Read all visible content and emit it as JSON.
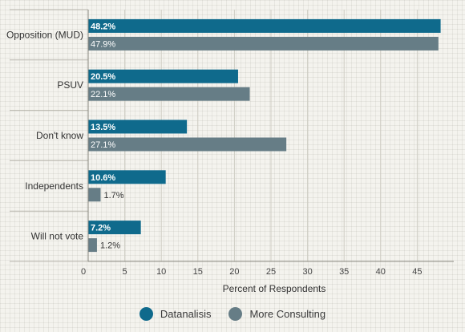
{
  "chart_data": {
    "type": "bar",
    "orientation": "horizontal",
    "categories": [
      "Opposition (MUD)",
      "PSUV",
      "Don't know",
      "Independents",
      "Will not vote"
    ],
    "series": [
      {
        "name": "Datanalisis",
        "color": "#0f6a8c",
        "values": [
          48.2,
          20.5,
          13.5,
          10.6,
          7.2
        ],
        "labels": [
          "48.2%",
          "20.5%",
          "13.5%",
          "10.6%",
          "7.2%"
        ]
      },
      {
        "name": "More Consulting",
        "color": "#667d86",
        "values": [
          47.9,
          22.1,
          27.1,
          1.7,
          1.2
        ],
        "labels": [
          "47.9%",
          "22.1%",
          "27.1%",
          "1.7%",
          "1.2%"
        ]
      }
    ],
    "xlabel": "Percent of Respondents",
    "ylabel": "",
    "xlim": [
      0,
      50
    ],
    "xticks": [
      "0",
      "5",
      "10",
      "15",
      "20",
      "25",
      "30",
      "35",
      "40",
      "45"
    ],
    "grid": true,
    "legend_position": "bottom"
  }
}
